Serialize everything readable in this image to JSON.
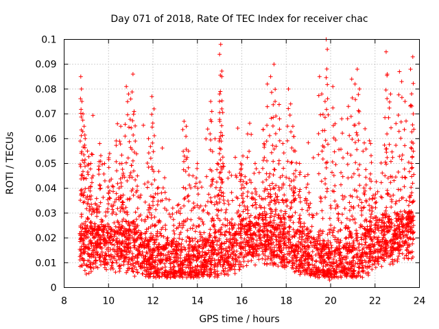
{
  "chart_data": {
    "type": "scatter",
    "title": "Day 071 of 2018, Rate Of TEC Index for receiver chac",
    "xlabel": "GPS time / hours",
    "ylabel": "ROTI / TECUs",
    "xlim": [
      8,
      24
    ],
    "ylim": [
      0,
      0.1
    ],
    "x_ticks": [
      "8",
      "10",
      "12",
      "14",
      "16",
      "18",
      "20",
      "22",
      "24"
    ],
    "y_ticks": [
      "0",
      "0.01",
      "0.02",
      "0.03",
      "0.04",
      "0.05",
      "0.06",
      "0.07",
      "0.08",
      "0.09",
      "0.1"
    ],
    "grid": true,
    "marker": "+",
    "color": "#ff0000",
    "data_time_range_hours": [
      8.7,
      23.75
    ],
    "series": [
      {
        "name": "ROTI",
        "points": [
          [
            8.75,
            0.085
          ],
          [
            8.78,
            0.08
          ],
          [
            8.8,
            0.075
          ],
          [
            8.85,
            0.07
          ],
          [
            8.9,
            0.065
          ],
          [
            8.95,
            0.06
          ],
          [
            9.05,
            0.055
          ],
          [
            9.2,
            0.05
          ],
          [
            9.3,
            0.045
          ],
          [
            9.6,
            0.058
          ],
          [
            10.05,
            0.054
          ],
          [
            10.4,
            0.066
          ],
          [
            10.55,
            0.065
          ],
          [
            10.6,
            0.05
          ],
          [
            10.8,
            0.081
          ],
          [
            10.9,
            0.078
          ],
          [
            11.0,
            0.076
          ],
          [
            11.1,
            0.086
          ],
          [
            11.15,
            0.071
          ],
          [
            11.3,
            0.045
          ],
          [
            11.8,
            0.06
          ],
          [
            11.95,
            0.077
          ],
          [
            12.05,
            0.072
          ],
          [
            12.2,
            0.04
          ],
          [
            13.4,
            0.067
          ],
          [
            13.5,
            0.065
          ],
          [
            13.6,
            0.055
          ],
          [
            13.8,
            0.045
          ],
          [
            14.0,
            0.05
          ],
          [
            14.6,
            0.075
          ],
          [
            14.65,
            0.071
          ],
          [
            14.9,
            0.05
          ],
          [
            15.05,
            0.098
          ],
          [
            15.0,
            0.094
          ],
          [
            15.1,
            0.085
          ],
          [
            15.0,
            0.078
          ],
          [
            15.1,
            0.072
          ],
          [
            15.0,
            0.06
          ],
          [
            15.15,
            0.05
          ],
          [
            15.95,
            0.05
          ],
          [
            16.05,
            0.053
          ],
          [
            16.6,
            0.05
          ],
          [
            17.0,
            0.058
          ],
          [
            17.15,
            0.082
          ],
          [
            17.3,
            0.085
          ],
          [
            17.45,
            0.09
          ],
          [
            17.5,
            0.075
          ],
          [
            17.7,
            0.068
          ],
          [
            17.85,
            0.058
          ],
          [
            18.1,
            0.08
          ],
          [
            18.2,
            0.074
          ],
          [
            18.3,
            0.065
          ],
          [
            18.4,
            0.055
          ],
          [
            18.6,
            0.05
          ],
          [
            19.5,
            0.085
          ],
          [
            19.6,
            0.078
          ],
          [
            19.8,
            0.1
          ],
          [
            19.85,
            0.096
          ],
          [
            19.75,
            0.075
          ],
          [
            20.1,
            0.081
          ],
          [
            20.2,
            0.066
          ],
          [
            20.5,
            0.068
          ],
          [
            20.8,
            0.073
          ],
          [
            20.95,
            0.084
          ],
          [
            21.1,
            0.082
          ],
          [
            21.2,
            0.088
          ],
          [
            21.3,
            0.08
          ],
          [
            21.55,
            0.064
          ],
          [
            21.8,
            0.058
          ],
          [
            22.5,
            0.095
          ],
          [
            22.55,
            0.086
          ],
          [
            22.7,
            0.078
          ],
          [
            23.1,
            0.087
          ],
          [
            23.2,
            0.083
          ],
          [
            23.35,
            0.075
          ],
          [
            23.6,
            0.088
          ],
          [
            23.7,
            0.093
          ],
          [
            23.72,
            0.07
          ],
          [
            23.65,
            0.056
          ],
          [
            9.0,
            0.02
          ],
          [
            10.0,
            0.018
          ],
          [
            11.0,
            0.016
          ],
          [
            12.0,
            0.013
          ],
          [
            13.0,
            0.012
          ],
          [
            14.0,
            0.015
          ],
          [
            15.0,
            0.016
          ],
          [
            16.0,
            0.018
          ],
          [
            17.0,
            0.017
          ],
          [
            18.0,
            0.016
          ],
          [
            19.0,
            0.014
          ],
          [
            20.0,
            0.012
          ],
          [
            21.0,
            0.015
          ],
          [
            22.0,
            0.02
          ],
          [
            23.0,
            0.02
          ],
          [
            19.95,
            0.003
          ],
          [
            20.05,
            0.004
          ],
          [
            14.2,
            0.005
          ],
          [
            10.8,
            0.006
          ],
          [
            21.7,
            0.005
          ]
        ]
      }
    ]
  }
}
